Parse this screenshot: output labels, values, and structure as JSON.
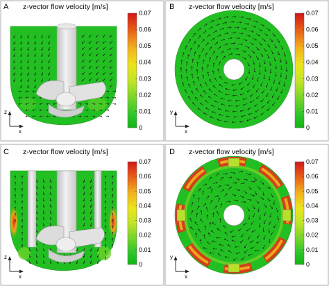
{
  "panels": [
    {
      "letter": "A",
      "title": "z-vector flow velocity [m/s]",
      "axis_v": "z",
      "axis_h": "x"
    },
    {
      "letter": "B",
      "title": "z-vector flow velocity [m/s]",
      "axis_v": "y",
      "axis_h": "x"
    },
    {
      "letter": "C",
      "title": "z-vector flow velocity [m/s]",
      "axis_v": "z",
      "axis_h": "x"
    },
    {
      "letter": "D",
      "title": "z-vector flow velocity [m/s]",
      "axis_v": "y",
      "axis_h": "x"
    }
  ],
  "colorbar": {
    "ticks": [
      "0.07",
      "0.06",
      "0.05",
      "0.04",
      "0.03",
      "0.02",
      "0.01",
      "0"
    ],
    "colors": [
      "#d32020",
      "#e86a1a",
      "#f0b21c",
      "#e8e020",
      "#b8e02a",
      "#6ad22a",
      "#2ec82a",
      "#16b816"
    ]
  },
  "colors": {
    "flow_low": "#22bf22",
    "flow_high": "#e8301e",
    "impeller": "#d8d8d8",
    "frame": "#aaaaaa"
  }
}
